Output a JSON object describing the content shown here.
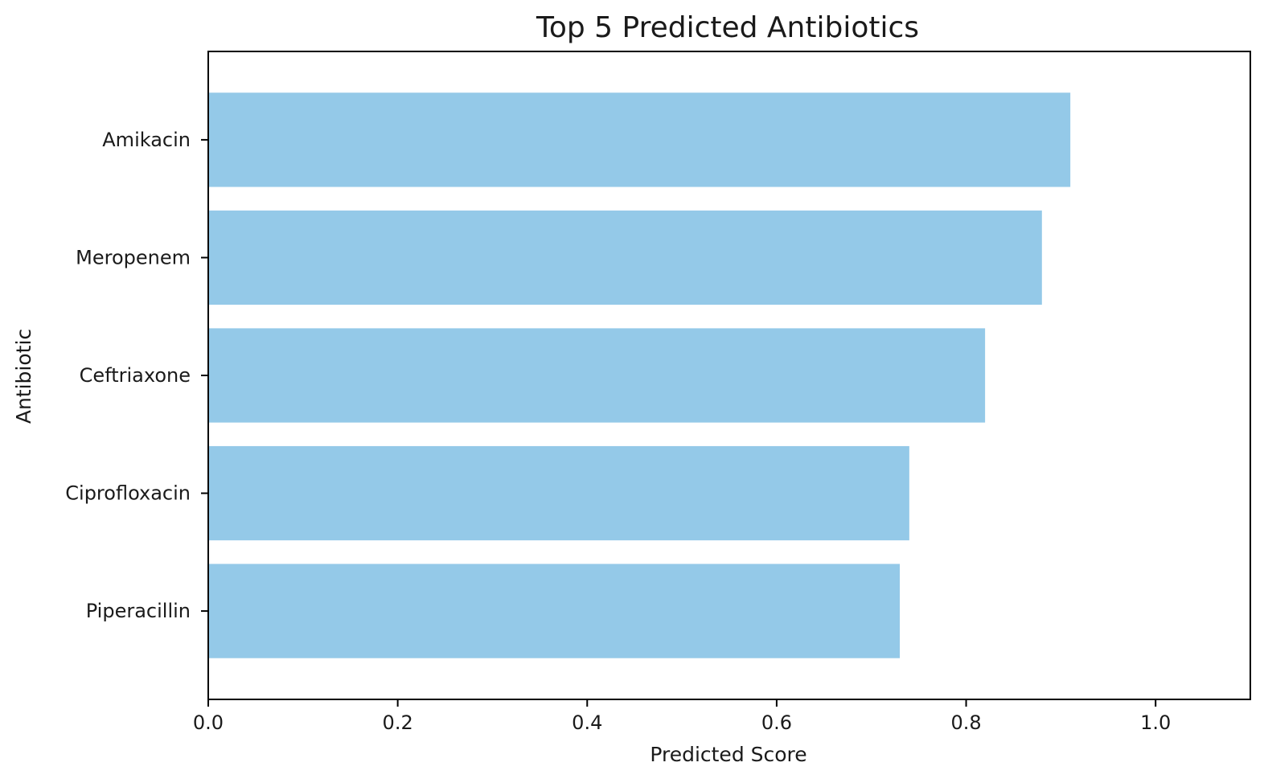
{
  "chart_data": {
    "type": "bar",
    "orientation": "horizontal",
    "title": "Top 5 Predicted Antibiotics",
    "xlabel": "Predicted Score",
    "ylabel": "Antibiotic",
    "categories": [
      "Amikacin",
      "Meropenem",
      "Ceftriaxone",
      "Ciprofloxacin",
      "Piperacillin"
    ],
    "values": [
      0.91,
      0.88,
      0.82,
      0.74,
      0.73
    ],
    "xlim": [
      0,
      1.1
    ],
    "xticks": [
      "0.0",
      "0.2",
      "0.4",
      "0.6",
      "0.8",
      "1.0"
    ],
    "bar_color": "#94c9e8",
    "grid": false,
    "legend": "none"
  }
}
